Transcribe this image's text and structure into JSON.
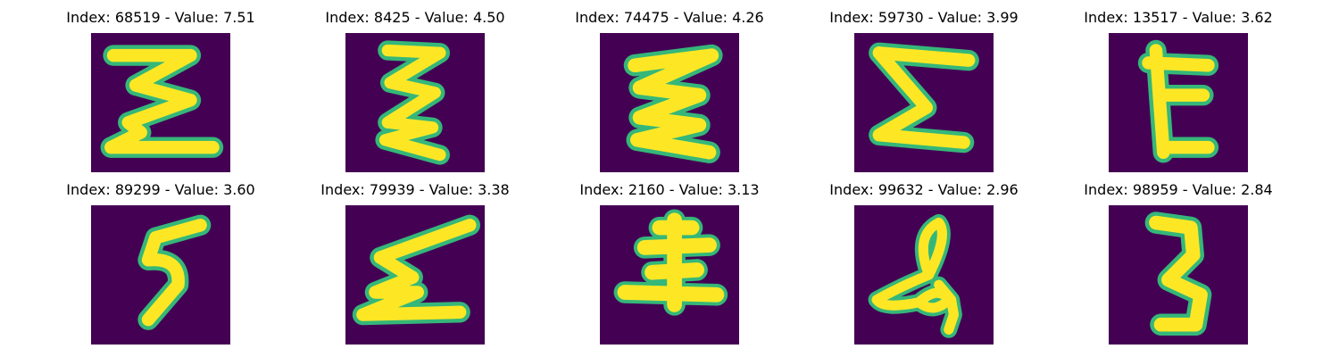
{
  "colors": {
    "background": "#440154",
    "stroke_core": "#fde725",
    "stroke_edge": "#35b779"
  },
  "panels": [
    {
      "title": "Index: 68519 - Value: 7.51",
      "image": "handwritten-sigma-1-image"
    },
    {
      "title": "Index: 8425 - Value: 4.50",
      "image": "handwritten-sigma-2-image"
    },
    {
      "title": "Index: 74475 - Value: 4.26",
      "image": "handwritten-sigma-3-image"
    },
    {
      "title": "Index: 59730 - Value: 3.99",
      "image": "handwritten-sigma-4-image"
    },
    {
      "title": "Index: 13517 - Value: 3.62",
      "image": "handwritten-e-image"
    },
    {
      "title": "Index: 89299 - Value: 3.60",
      "image": "handwritten-five-image"
    },
    {
      "title": "Index: 79939 - Value: 3.38",
      "image": "handwritten-sigma-5-image"
    },
    {
      "title": "Index: 2160 - Value: 3.13",
      "image": "handwritten-cross-shape-image"
    },
    {
      "title": "Index: 99632 - Value: 2.96",
      "image": "handwritten-loop-scribble-image"
    },
    {
      "title": "Index: 98959 - Value: 2.84",
      "image": "handwritten-three-image"
    }
  ]
}
